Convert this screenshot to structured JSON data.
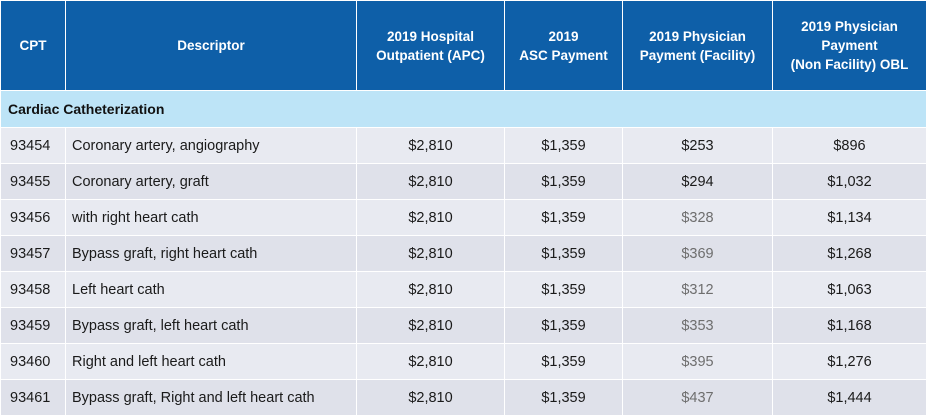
{
  "columns": [
    "CPT",
    "Descriptor",
    "2019 Hospital Outpatient (APC)",
    "2019 ASC Payment",
    "2019 Physician Payment (Facility)",
    "2019 Physician Payment (Non Facility) OBL"
  ],
  "header_lines": {
    "apc": [
      "2019 Hospital",
      "Outpatient (APC)"
    ],
    "asc": [
      "2019",
      "ASC Payment"
    ],
    "phys_fac": [
      "2019 Physician",
      "Payment (Facility)"
    ],
    "phys_obl": [
      "2019 Physician",
      "Payment",
      "(Non Facility) OBL"
    ]
  },
  "section_title": "Cardiac Catheterization",
  "rows": [
    {
      "cpt": "93454",
      "descriptor": "Coronary artery, angiography",
      "apc": "$2,810",
      "asc": "$1,359",
      "phys_fac": "$253",
      "phys_obl": "$896"
    },
    {
      "cpt": "93455",
      "descriptor": "Coronary artery, graft",
      "apc": "$2,810",
      "asc": "$1,359",
      "phys_fac": "$294",
      "phys_obl": "$1,032"
    },
    {
      "cpt": "93456",
      "descriptor": "with right heart cath",
      "apc": "$2,810",
      "asc": "$1,359",
      "phys_fac": "$328",
      "phys_obl": "$1,134"
    },
    {
      "cpt": "93457",
      "descriptor": "Bypass graft, right heart cath",
      "apc": "$2,810",
      "asc": "$1,359",
      "phys_fac": "$369",
      "phys_obl": "$1,268"
    },
    {
      "cpt": "93458",
      "descriptor": "Left heart cath",
      "apc": "$2,810",
      "asc": "$1,359",
      "phys_fac": "$312",
      "phys_obl": "$1,063"
    },
    {
      "cpt": "93459",
      "descriptor": "Bypass graft, left heart cath",
      "apc": "$2,810",
      "asc": "$1,359",
      "phys_fac": "$353",
      "phys_obl": "$1,168"
    },
    {
      "cpt": "93460",
      "descriptor": "Right and left heart cath",
      "apc": "$2,810",
      "asc": "$1,359",
      "phys_fac": "$395",
      "phys_obl": "$1,276"
    },
    {
      "cpt": "93461",
      "descriptor": "Bypass graft, Right and left heart cath",
      "apc": "$2,810",
      "asc": "$1,359",
      "phys_fac": "$437",
      "phys_obl": "$1,444"
    }
  ],
  "colors": {
    "header_bg": "#0e5fa8",
    "section_bg": "#bde4f7",
    "row_bg_a": "#dfe1ea",
    "row_bg_b": "#e8eaf1",
    "grey_text": "#6e6e6e"
  }
}
